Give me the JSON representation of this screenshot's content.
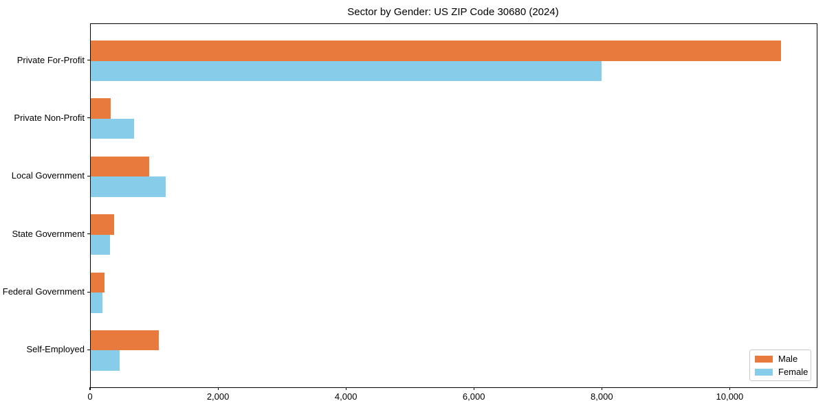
{
  "chart_data": {
    "type": "bar",
    "orientation": "horizontal",
    "title": "Sector by Gender: US ZIP Code 30680 (2024)",
    "categories": [
      "Private For-Profit",
      "Private Non-Profit",
      "Local Government",
      "State Government",
      "Federal Government",
      "Self-Employed"
    ],
    "series": [
      {
        "name": "Male",
        "color": "#E87A3E",
        "values": [
          10790,
          310,
          910,
          365,
          215,
          1065
        ]
      },
      {
        "name": "Female",
        "color": "#87CCE8",
        "values": [
          7980,
          680,
          1170,
          300,
          185,
          450
        ]
      }
    ],
    "xlabel": "",
    "ylabel": "",
    "xlim": [
      0,
      11350
    ],
    "xticks": [
      0,
      2000,
      4000,
      6000,
      8000,
      10000
    ],
    "xtick_labels": [
      "0",
      "2,000",
      "4,000",
      "6,000",
      "8,000",
      "10,000"
    ],
    "grid": false,
    "legend_position": "lower right",
    "spine_box": true
  }
}
